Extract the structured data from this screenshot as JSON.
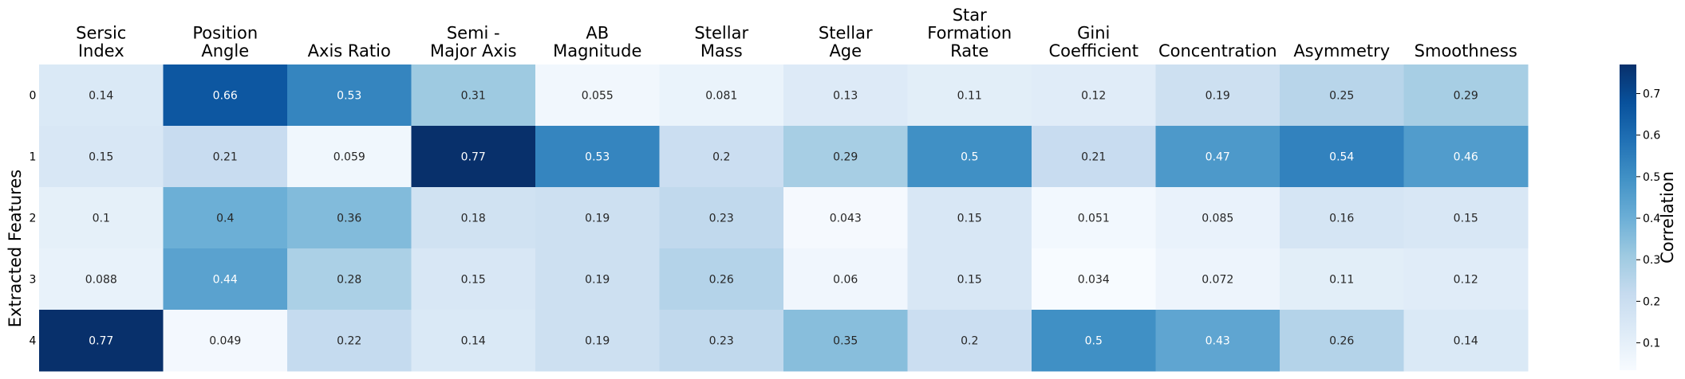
{
  "chart_data": {
    "type": "heatmap",
    "title": "",
    "xlabel": "",
    "ylabel": "Extracted Features",
    "columns": [
      [
        "Sersic",
        "Index"
      ],
      [
        "Position",
        "Angle"
      ],
      [
        "Axis Ratio"
      ],
      [
        "Semi -",
        "Major Axis"
      ],
      [
        "AB",
        "Magnitude"
      ],
      [
        "Stellar",
        "Mass"
      ],
      [
        "Stellar",
        "Age"
      ],
      [
        "Star",
        "Formation",
        "Rate"
      ],
      [
        "Gini",
        "Coefficient"
      ],
      [
        "Concentration"
      ],
      [
        "Asymmetry"
      ],
      [
        "Smoothness"
      ]
    ],
    "rows": [
      "0",
      "1",
      "2",
      "3",
      "4"
    ],
    "values": [
      [
        0.14,
        0.66,
        0.53,
        0.31,
        0.055,
        0.081,
        0.13,
        0.11,
        0.12,
        0.19,
        0.25,
        0.29
      ],
      [
        0.15,
        0.21,
        0.059,
        0.77,
        0.53,
        0.2,
        0.29,
        0.5,
        0.21,
        0.47,
        0.54,
        0.46
      ],
      [
        0.1,
        0.4,
        0.36,
        0.18,
        0.19,
        0.23,
        0.043,
        0.15,
        0.051,
        0.085,
        0.16,
        0.15
      ],
      [
        0.088,
        0.44,
        0.28,
        0.15,
        0.19,
        0.26,
        0.06,
        0.15,
        0.034,
        0.072,
        0.11,
        0.12
      ],
      [
        0.77,
        0.049,
        0.22,
        0.14,
        0.19,
        0.23,
        0.35,
        0.2,
        0.5,
        0.43,
        0.26,
        0.14
      ]
    ],
    "colorbar": {
      "label": "Correlation",
      "vmin": 0.034,
      "vmax": 0.77,
      "ticks": [
        "0.1",
        "0.2",
        "0.3",
        "0.4",
        "0.5",
        "0.6",
        "0.7"
      ]
    },
    "colormap": "Blues"
  }
}
